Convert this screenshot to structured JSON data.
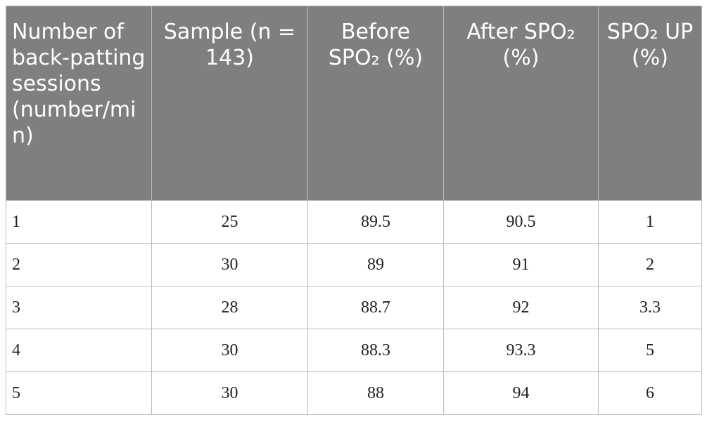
{
  "table": {
    "header": [
      "Number of back-patting sessions (number/min)",
      "Sample (n = 143)",
      "Before SPO₂ (%)",
      "After SPO₂ (%)",
      "SPO₂ UP (%)"
    ],
    "rows": [
      [
        1,
        25,
        89.5,
        90.5,
        1
      ],
      [
        2,
        30,
        89,
        91,
        2
      ],
      [
        3,
        28,
        88.7,
        92,
        3.3
      ],
      [
        4,
        30,
        88.3,
        93.3,
        5
      ],
      [
        5,
        30,
        88,
        94,
        6
      ]
    ]
  }
}
